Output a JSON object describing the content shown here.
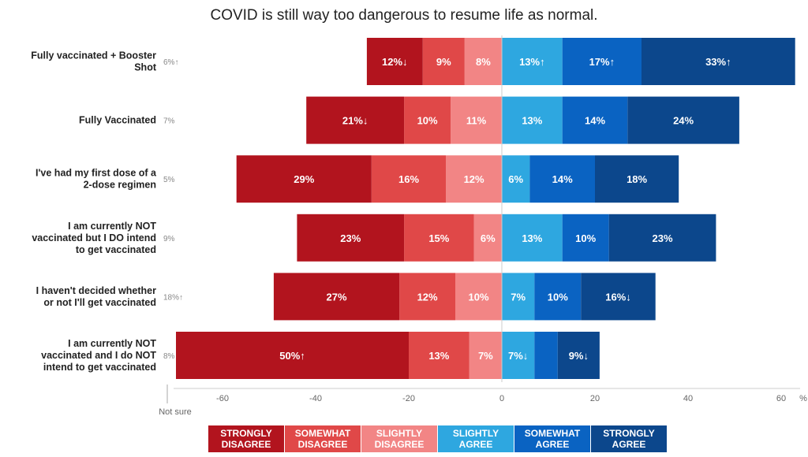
{
  "chart_data": {
    "type": "bar",
    "orientation": "horizontal-diverging",
    "title": "COVID is still way too dangerous to resume life as normal.",
    "not_sure_label": "Not sure",
    "unit": "%",
    "xlim": [
      -70,
      64
    ],
    "xticks": [
      -60,
      -40,
      -20,
      0,
      20,
      40,
      60
    ],
    "categories": [
      "Fully vaccinated + Booster Shot",
      "Fully Vaccinated",
      "I've had my first dose of a 2-dose regimen",
      "I am currently NOT vaccinated but I DO intend to get vaccinated",
      "I haven't decided whether or not I'll get vaccinated",
      "I am currently NOT vaccinated and I do NOT intend to get vaccinated"
    ],
    "not_sure": [
      "6%↑",
      "7%",
      "5%",
      "9%",
      "18%↑",
      "8%"
    ],
    "series": [
      {
        "name": "STRONGLY DISAGREE",
        "color": "#b2141e",
        "side": "negative",
        "values": [
          12,
          21,
          29,
          23,
          27,
          50
        ],
        "labels": [
          "12%↓",
          "21%↓",
          "29%",
          "23%",
          "27%",
          "50%↑"
        ]
      },
      {
        "name": "SOMEWHAT DISAGREE",
        "color": "#e04848",
        "side": "negative",
        "values": [
          9,
          10,
          16,
          15,
          12,
          13
        ],
        "labels": [
          "9%",
          "10%",
          "16%",
          "15%",
          "12%",
          "13%"
        ]
      },
      {
        "name": "SLIGHTLY DISAGREE",
        "color": "#f28585",
        "side": "negative",
        "values": [
          8,
          11,
          12,
          6,
          10,
          7
        ],
        "labels": [
          "8%",
          "11%",
          "12%",
          "6%",
          "10%",
          "7%"
        ]
      },
      {
        "name": "SLIGHTLY AGREE",
        "color": "#2ea7e0",
        "side": "positive",
        "values": [
          13,
          13,
          6,
          13,
          7,
          7
        ],
        "labels": [
          "13%↑",
          "13%",
          "6%",
          "13%",
          "7%",
          "7%↓"
        ]
      },
      {
        "name": "SOMEWHAT AGREE",
        "color": "#0a63c2",
        "side": "positive",
        "values": [
          17,
          14,
          14,
          10,
          10,
          5
        ],
        "labels": [
          "17%↑",
          "14%",
          "14%",
          "10%",
          "10%",
          ""
        ]
      },
      {
        "name": "STRONGLY AGREE",
        "color": "#0c478c",
        "side": "positive",
        "values": [
          33,
          24,
          18,
          23,
          16,
          9
        ],
        "labels": [
          "33%↑",
          "24%",
          "18%",
          "23%",
          "16%↓",
          "9%↓"
        ]
      }
    ],
    "legend": [
      {
        "line1": "STRONGLY",
        "line2": "DISAGREE",
        "color": "#b2141e"
      },
      {
        "line1": "SOMEWHAT",
        "line2": "DISAGREE",
        "color": "#e04848"
      },
      {
        "line1": "SLIGHTLY",
        "line2": "DISAGREE",
        "color": "#f28585"
      },
      {
        "line1": "SLIGHTLY",
        "line2": "AGREE",
        "color": "#2ea7e0"
      },
      {
        "line1": "SOMEWHAT",
        "line2": "AGREE",
        "color": "#0a63c2"
      },
      {
        "line1": "STRONGLY",
        "line2": "AGREE",
        "color": "#0c478c"
      }
    ]
  }
}
